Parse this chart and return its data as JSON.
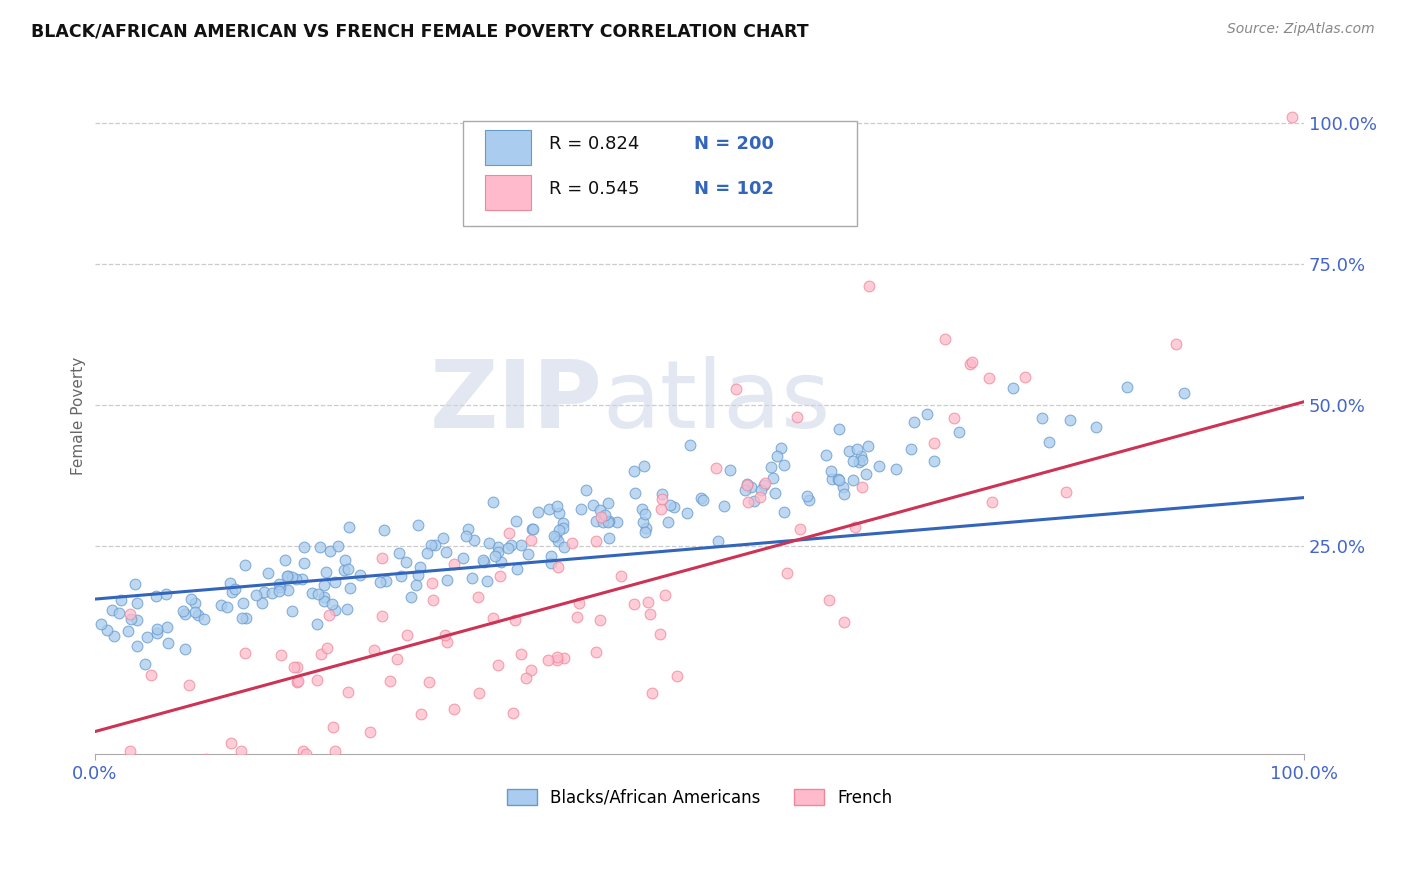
{
  "title": "BLACK/AFRICAN AMERICAN VS FRENCH FEMALE POVERTY CORRELATION CHART",
  "source": "Source: ZipAtlas.com",
  "ylabel": "Female Poverty",
  "xlim": [
    0.0,
    1.0
  ],
  "ylim": [
    -0.12,
    1.08
  ],
  "x_tick_labels": [
    "0.0%",
    "100.0%"
  ],
  "y_ticks": [
    0.25,
    0.5,
    0.75,
    1.0
  ],
  "y_tick_labels": [
    "25.0%",
    "50.0%",
    "75.0%",
    "100.0%"
  ],
  "blue_scatter_color": "#aaccee",
  "blue_edge_color": "#6699cc",
  "pink_scatter_color": "#ffbbcc",
  "pink_edge_color": "#ee8899",
  "line_blue": "#3366bb",
  "line_pink": "#cc3355",
  "R_blue": 0.824,
  "N_blue": 200,
  "R_pink": 0.545,
  "N_pink": 102,
  "legend_label_blue": "Blacks/African Americans",
  "legend_label_pink": "French",
  "watermark_zip": "ZIP",
  "watermark_atlas": "atlas",
  "background_color": "#ffffff",
  "grid_color": "#cccccc",
  "title_color": "#111111",
  "axis_label_color": "#666666",
  "tick_color": "#4466cc",
  "source_color": "#888888",
  "legend_text_color": "#111111",
  "legend_N_color": "#3366bb"
}
